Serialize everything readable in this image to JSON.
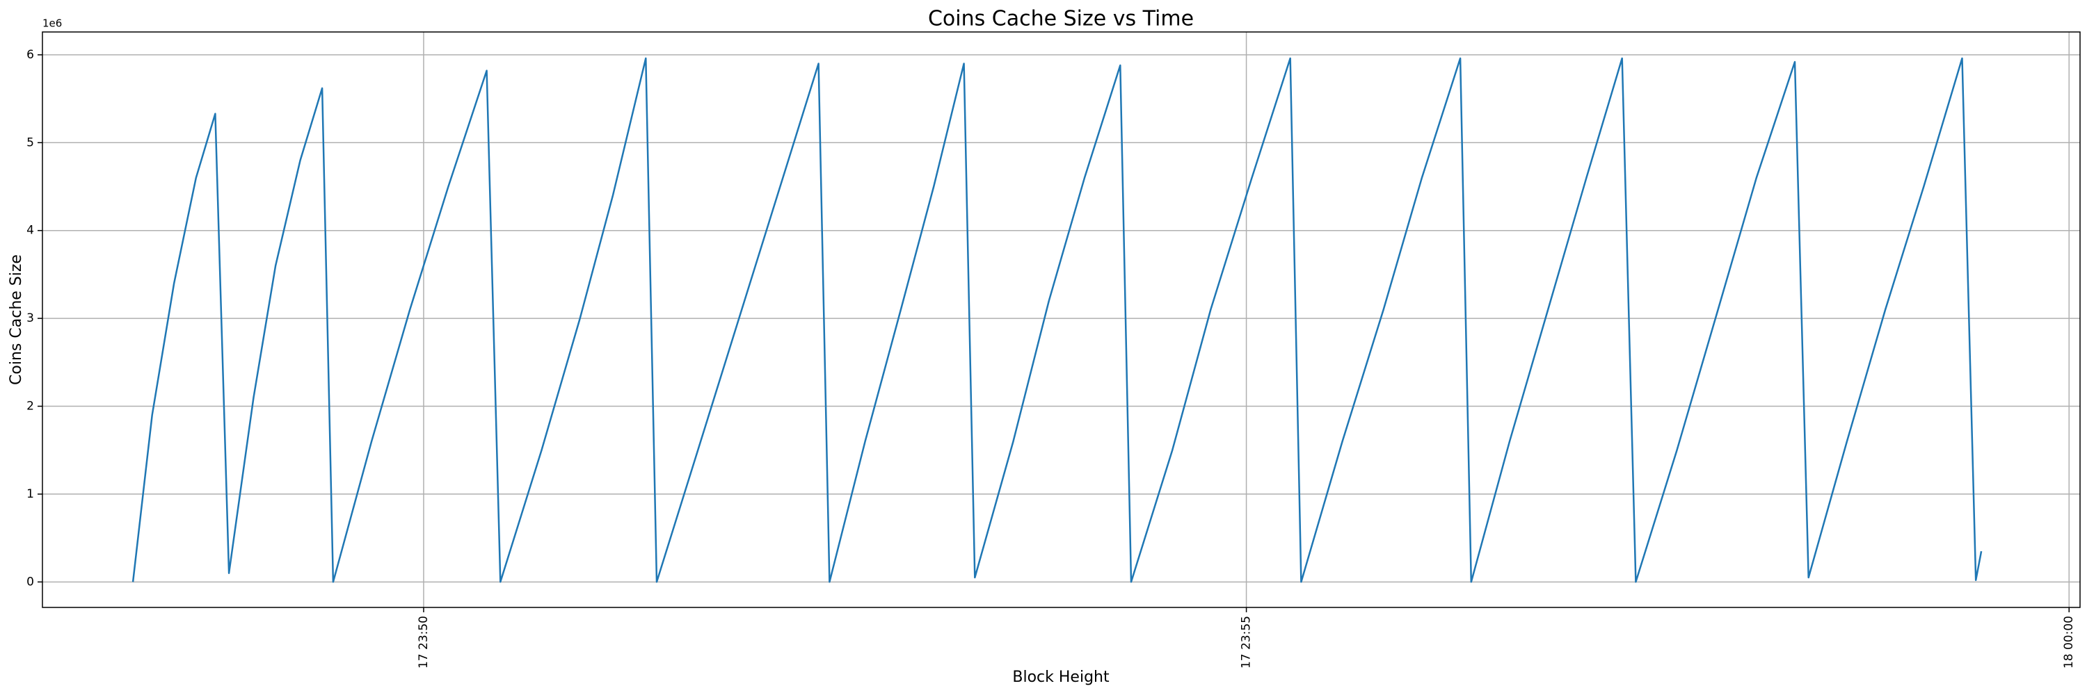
{
  "chart_data": {
    "type": "line",
    "title": "Coins Cache Size vs Time",
    "x_label": "Block Height",
    "y_label": "Coins Cache Size",
    "offset_text": "1e6",
    "color": "#1f77b4",
    "grid": true,
    "xlim": [
      "17 23:47:41",
      "18 00:00:04"
    ],
    "xticks": [
      "17 23:50",
      "17 23:55",
      "18 00:00"
    ],
    "ylim": [
      -0.29,
      6.26
    ],
    "yticks": [
      0,
      1,
      2,
      3,
      4,
      5,
      6
    ],
    "x": [
      "17 23:48:14",
      "17 23:48:21",
      "17 23:48:29",
      "17 23:48:37",
      "17 23:48:44",
      "17 23:48:49",
      "17 23:48:58",
      "17 23:49:06",
      "17 23:49:15",
      "17 23:49:23",
      "17 23:49:27",
      "17 23:49:41",
      "17 23:49:55",
      "17 23:50:09",
      "17 23:50:23",
      "17 23:50:28",
      "17 23:50:43",
      "17 23:50:57",
      "17 23:51:09",
      "17 23:51:21",
      "17 23:51:25",
      "17 23:51:40",
      "17 23:51:56",
      "17 23:52:10",
      "17 23:52:24",
      "17 23:52:28",
      "17 23:52:41",
      "17 23:52:54",
      "17 23:53:06",
      "17 23:53:17",
      "17 23:53:21",
      "17 23:53:35",
      "17 23:53:48",
      "17 23:54:01",
      "17 23:54:14",
      "17 23:54:18",
      "17 23:54:33",
      "17 23:54:47",
      "17 23:55:02",
      "17 23:55:16",
      "17 23:55:20",
      "17 23:55:35",
      "17 23:55:50",
      "17 23:56:04",
      "17 23:56:18",
      "17 23:56:22",
      "17 23:56:36",
      "17 23:56:50",
      "17 23:57:04",
      "17 23:57:17",
      "17 23:57:22",
      "17 23:57:37",
      "17 23:57:52",
      "17 23:58:06",
      "17 23:58:20",
      "17 23:58:25",
      "17 23:58:39",
      "17 23:58:53",
      "17 23:59:07",
      "17 23:59:21",
      "17 23:59:26",
      "17 23:59:28"
    ],
    "values": [
      0,
      1.9,
      3.4,
      4.6,
      5.33,
      0.1,
      2.1,
      3.6,
      4.8,
      5.62,
      0,
      1.6,
      3.1,
      4.5,
      5.82,
      0,
      1.5,
      3.0,
      4.4,
      5.96,
      0,
      1.5,
      3.1,
      4.5,
      5.9,
      0,
      1.6,
      3.1,
      4.5,
      5.9,
      0.05,
      1.6,
      3.2,
      4.6,
      5.88,
      0,
      1.5,
      3.1,
      4.6,
      5.96,
      0,
      1.6,
      3.1,
      4.6,
      5.96,
      0,
      1.6,
      3.1,
      4.6,
      5.96,
      0,
      1.5,
      3.1,
      4.6,
      5.92,
      0.05,
      1.6,
      3.1,
      4.5,
      5.96,
      0.02,
      0.35
    ]
  }
}
